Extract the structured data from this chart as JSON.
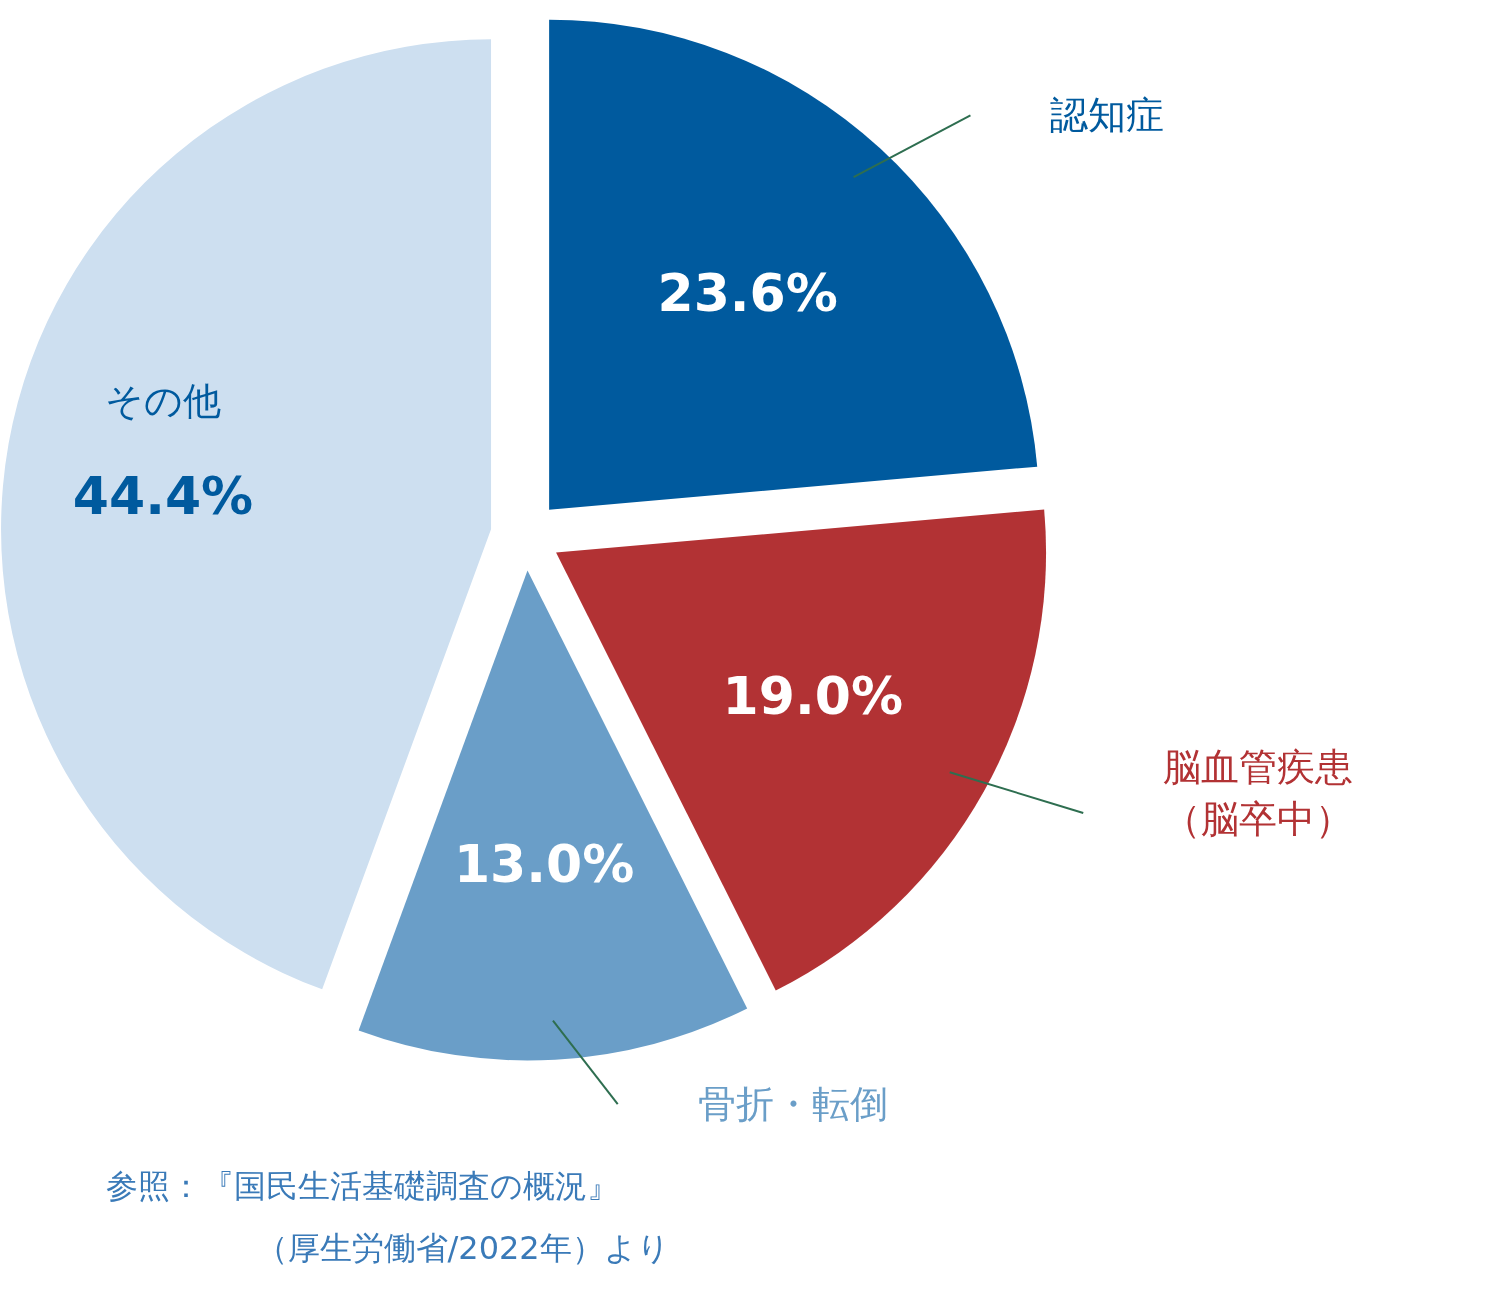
{
  "chart_data": {
    "type": "pie",
    "categories": [
      "認知症",
      "脳血管疾患（脳卒中）",
      "骨折・転倒",
      "その他"
    ],
    "values": [
      23.6,
      19.0,
      13.0,
      44.4
    ],
    "colors": [
      "#005a9e",
      "#b23234",
      "#6a9ec8",
      "#cddff0"
    ],
    "value_labels": [
      "23.6%",
      "19.0%",
      "13.0%",
      "44.4%"
    ],
    "annotations": [
      "参照：『国民生活基礎調査の概況』",
      "（厚生労働省/2022年）より"
    ]
  }
}
